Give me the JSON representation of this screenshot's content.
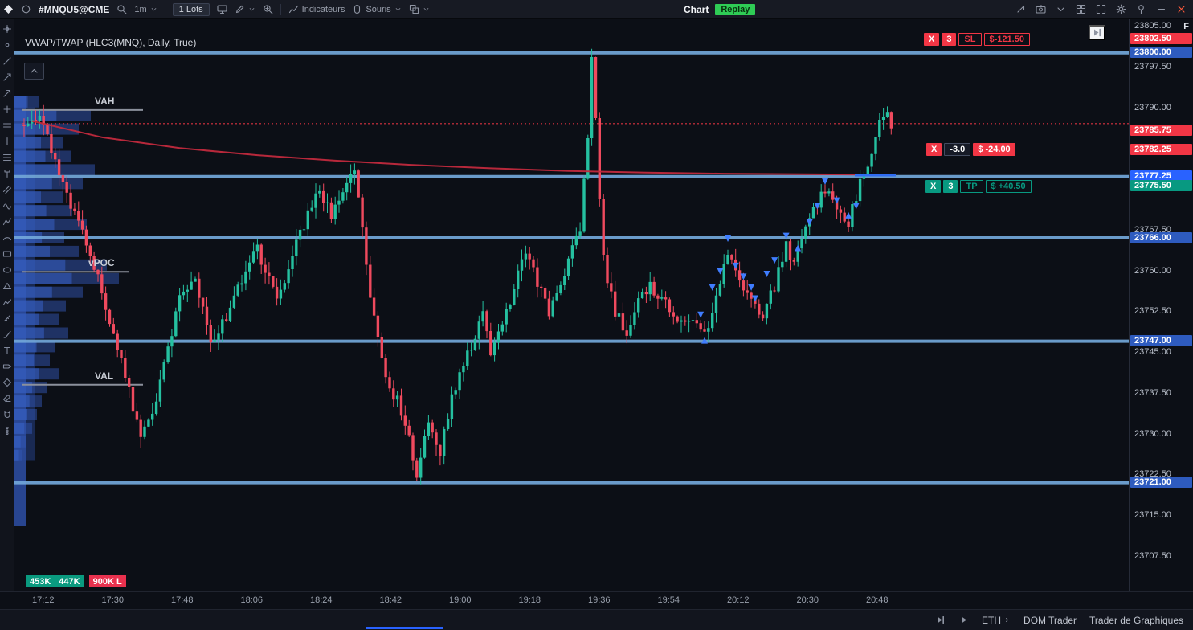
{
  "titlebar": {
    "symbol": "#MNQU5@CME",
    "timeframe": "1m",
    "lots_label": "1 Lots",
    "indicators_label": "Indicateurs",
    "mouse_label": "Souris",
    "window_title": "Chart",
    "replay_label": "Replay",
    "right_icons": [
      "share-arrow-icon",
      "camera-icon",
      "caret-down-icon",
      "monitor-grid-icon",
      "fullscreen-icon",
      "settings-gear-icon",
      "pin-icon",
      "minimize-icon",
      "close-icon"
    ]
  },
  "toolbar": {
    "tools": [
      {
        "name": "crosshair-tool-icon",
        "glyph": "crosshair"
      },
      {
        "name": "dot-cursor-icon",
        "glyph": "dot"
      },
      {
        "name": "trend-line-icon",
        "glyph": "trendline"
      },
      {
        "name": "ray-line-icon",
        "glyph": "ray"
      },
      {
        "name": "arrow-tool-icon",
        "glyph": "arrow"
      },
      {
        "name": "cross-line-icon",
        "glyph": "plus"
      },
      {
        "name": "horizontal-line-icon",
        "glyph": "hlines"
      },
      {
        "name": "vertical-line-icon",
        "glyph": "vline"
      },
      {
        "name": "fib-retracement-icon",
        "glyph": "fib"
      },
      {
        "name": "pitchfork-icon",
        "glyph": "fork"
      },
      {
        "name": "parallel-channel-icon",
        "glyph": "channel"
      },
      {
        "name": "wave-tool-icon",
        "glyph": "wave"
      },
      {
        "name": "zigzag-tool-icon",
        "glyph": "zigzag"
      },
      {
        "name": "arc-tool-icon",
        "glyph": "arc"
      },
      {
        "name": "rectangle-tool-icon",
        "glyph": "rect"
      },
      {
        "name": "ellipse-tool-icon",
        "glyph": "ellipse"
      },
      {
        "name": "triangle-tool-icon",
        "glyph": "triangle"
      },
      {
        "name": "polyline-tool-icon",
        "glyph": "polyline"
      },
      {
        "name": "ruler-tool-icon",
        "glyph": "ruler"
      },
      {
        "name": "brush-tool-icon",
        "glyph": "brush"
      },
      {
        "name": "text-tool-icon",
        "glyph": "text"
      },
      {
        "name": "price-label-icon",
        "glyph": "label"
      },
      {
        "name": "diamond-shape-icon",
        "glyph": "diamond"
      },
      {
        "name": "eraser-tool-icon",
        "glyph": "eraser"
      },
      {
        "name": "magnet-mode-icon",
        "glyph": "magnet"
      },
      {
        "name": "more-tools-icon",
        "glyph": "dots"
      }
    ]
  },
  "chart": {
    "study_title": "VWAP/TWAP (HLC3(MNQ), Daily, True)",
    "profile_labels": {
      "vah": "VAH",
      "vpoc": "vPOC",
      "val": "VAL"
    },
    "volume_badges": [
      "453K",
      "447K",
      "900K L"
    ],
    "corner_letter": "F"
  },
  "orders": [
    {
      "close": "X",
      "qty": "3",
      "tag": "SL",
      "pnl": "$-121.50",
      "price": 23802.5,
      "style": "sl"
    },
    {
      "close": "X",
      "qty": "-3.0",
      "tag": "",
      "pnl": "$ -24.00",
      "price": 23782.25,
      "style": "pos"
    },
    {
      "close": "X",
      "qty": "3",
      "tag": "TP",
      "pnl": "$ +40.50",
      "price": 23775.5,
      "style": "tp"
    }
  ],
  "price_axis": {
    "ticks": [
      "23805.00",
      "23797.50",
      "23790.00",
      "23767.50",
      "23760.00",
      "23752.50",
      "23745.00",
      "23737.50",
      "23730.00",
      "23722.50",
      "23715.00",
      "23707.50"
    ],
    "badges": [
      {
        "label": "23802.50",
        "color": "#f23645"
      },
      {
        "label": "23800.00",
        "color": "#2e5bbf"
      },
      {
        "label": "23785.75",
        "color": "#f23645"
      },
      {
        "label": "23782.25",
        "color": "#f23645"
      },
      {
        "label": "23777.25",
        "color": "#2962ff"
      },
      {
        "label": "23775.50",
        "color": "#089981"
      },
      {
        "label": "23766.00",
        "color": "#2e5bbf"
      },
      {
        "label": "23747.00",
        "color": "#2e5bbf"
      },
      {
        "label": "23721.00",
        "color": "#2e5bbf"
      }
    ]
  },
  "time_axis": [
    "17:12",
    "17:30",
    "17:48",
    "18:06",
    "18:24",
    "18:42",
    "19:00",
    "19:18",
    "19:36",
    "19:54",
    "20:12",
    "20:30",
    "20:48"
  ],
  "statusbar": {
    "session": "ETH",
    "tabs": [
      "DOM Trader",
      "Trader de Graphiques"
    ]
  },
  "colors": {
    "up": "#25c0a0",
    "down": "#ef4a5e",
    "level_blue": "#72a7da",
    "active_blue": "#2e6bf2",
    "vwap_red": "#c22a3d",
    "dotted_red": "#f23645",
    "profile_blue": "#2b4a9b",
    "marker_blue": "#3f7dff",
    "va_gray": "#8b909c"
  },
  "chart_data": {
    "type": "candlestick",
    "symbol": "MNQU5",
    "interval": "1m",
    "price_range": [
      23707.5,
      23805.0
    ],
    "time_range": [
      "17:12",
      "20:52"
    ],
    "levels": {
      "blue_lines": [
        23800.0,
        23777.25,
        23766.0,
        23747.0,
        23721.0
      ],
      "dotted_red": 23787.0,
      "vah": 23789.5,
      "vpoc": 23759.75,
      "val": 23739.0,
      "current_segment": 23777.25
    },
    "vwap_points": [
      [
        2,
        23787.5
      ],
      [
        20,
        23784.5
      ],
      [
        40,
        23782.5
      ],
      [
        60,
        23781.2
      ],
      [
        80,
        23780.2
      ],
      [
        100,
        23779.4
      ],
      [
        120,
        23778.8
      ],
      [
        140,
        23778.3
      ],
      [
        160,
        23778.0
      ],
      [
        180,
        23777.8
      ],
      [
        200,
        23777.7
      ],
      [
        223,
        23777.6
      ]
    ],
    "anchors": [
      [
        0,
        23787
      ],
      [
        4,
        23789
      ],
      [
        8,
        23780
      ],
      [
        12,
        23772
      ],
      [
        16,
        23765
      ],
      [
        19,
        23759
      ],
      [
        22,
        23751
      ],
      [
        26,
        23741
      ],
      [
        30,
        23729
      ],
      [
        33,
        23734
      ],
      [
        36,
        23743
      ],
      [
        40,
        23755
      ],
      [
        44,
        23759
      ],
      [
        48,
        23746
      ],
      [
        53,
        23753
      ],
      [
        57,
        23760
      ],
      [
        60,
        23764
      ],
      [
        65,
        23754
      ],
      [
        69,
        23763
      ],
      [
        73,
        23770
      ],
      [
        76,
        23775
      ],
      [
        79,
        23770
      ],
      [
        82,
        23774
      ],
      [
        85,
        23778
      ],
      [
        87,
        23768
      ],
      [
        89,
        23756
      ],
      [
        91,
        23747
      ],
      [
        93,
        23740
      ],
      [
        96,
        23736
      ],
      [
        98,
        23732
      ],
      [
        101,
        23722
      ],
      [
        104,
        23733
      ],
      [
        107,
        23727
      ],
      [
        110,
        23737
      ],
      [
        113,
        23743
      ],
      [
        116,
        23748
      ],
      [
        118,
        23752
      ],
      [
        120,
        23744
      ],
      [
        123,
        23750
      ],
      [
        126,
        23757
      ],
      [
        129,
        23764
      ],
      [
        132,
        23758
      ],
      [
        135,
        23752
      ],
      [
        137,
        23756
      ],
      [
        140,
        23762
      ],
      [
        143,
        23768
      ],
      [
        145,
        23785
      ],
      [
        146,
        23799
      ],
      [
        147,
        23788
      ],
      [
        148,
        23772
      ],
      [
        149,
        23762
      ],
      [
        152,
        23752
      ],
      [
        155,
        23749
      ],
      [
        158,
        23754
      ],
      [
        161,
        23757
      ],
      [
        164,
        23755
      ],
      [
        168,
        23751
      ],
      [
        172,
        23750
      ],
      [
        175,
        23748
      ],
      [
        178,
        23755
      ],
      [
        181,
        23763
      ],
      [
        184,
        23758
      ],
      [
        187,
        23754
      ],
      [
        190,
        23752
      ],
      [
        193,
        23757
      ],
      [
        196,
        23765
      ],
      [
        198,
        23761
      ],
      [
        200,
        23766
      ],
      [
        203,
        23771
      ],
      [
        206,
        23775
      ],
      [
        209,
        23771
      ],
      [
        212,
        23769
      ],
      [
        215,
        23776
      ],
      [
        218,
        23782
      ],
      [
        220,
        23787
      ],
      [
        222,
        23790
      ],
      [
        223,
        23786
      ]
    ],
    "markers": [
      [
        174,
        23752,
        "down"
      ],
      [
        175,
        23747,
        "up"
      ],
      [
        177,
        23757,
        "down"
      ],
      [
        179,
        23760,
        "down"
      ],
      [
        181,
        23766,
        "down"
      ],
      [
        183,
        23761,
        "down"
      ],
      [
        185,
        23759,
        "down"
      ],
      [
        187,
        23757,
        "down"
      ],
      [
        188,
        23755,
        "down"
      ],
      [
        191,
        23759.5,
        "down"
      ],
      [
        193,
        23762,
        "down"
      ],
      [
        196,
        23766.5,
        "down"
      ],
      [
        199,
        23764,
        "up"
      ],
      [
        202,
        23769,
        "down"
      ],
      [
        204,
        23772,
        "down"
      ],
      [
        206,
        23776.5,
        "down"
      ],
      [
        209,
        23773,
        "down"
      ],
      [
        212,
        23770,
        "up"
      ],
      [
        214,
        23772,
        "down"
      ]
    ],
    "volume_profile": [
      [
        23791,
        30
      ],
      [
        23788.5,
        95
      ],
      [
        23786,
        80
      ],
      [
        23783.5,
        60
      ],
      [
        23781,
        70
      ],
      [
        23778.5,
        100
      ],
      [
        23776,
        85
      ],
      [
        23773.5,
        60
      ],
      [
        23771,
        72
      ],
      [
        23768.5,
        90
      ],
      [
        23766,
        62
      ],
      [
        23763.5,
        80
      ],
      [
        23761,
        115
      ],
      [
        23758.5,
        130
      ],
      [
        23756,
        85
      ],
      [
        23753.5,
        64
      ],
      [
        23751,
        55
      ],
      [
        23748.5,
        67
      ],
      [
        23746,
        50
      ],
      [
        23743.5,
        44
      ],
      [
        23741,
        56
      ],
      [
        23738.5,
        40
      ],
      [
        23736,
        34
      ],
      [
        23733.5,
        28
      ],
      [
        23731,
        22
      ],
      [
        23728.5,
        14
      ],
      [
        23726,
        10
      ]
    ]
  }
}
